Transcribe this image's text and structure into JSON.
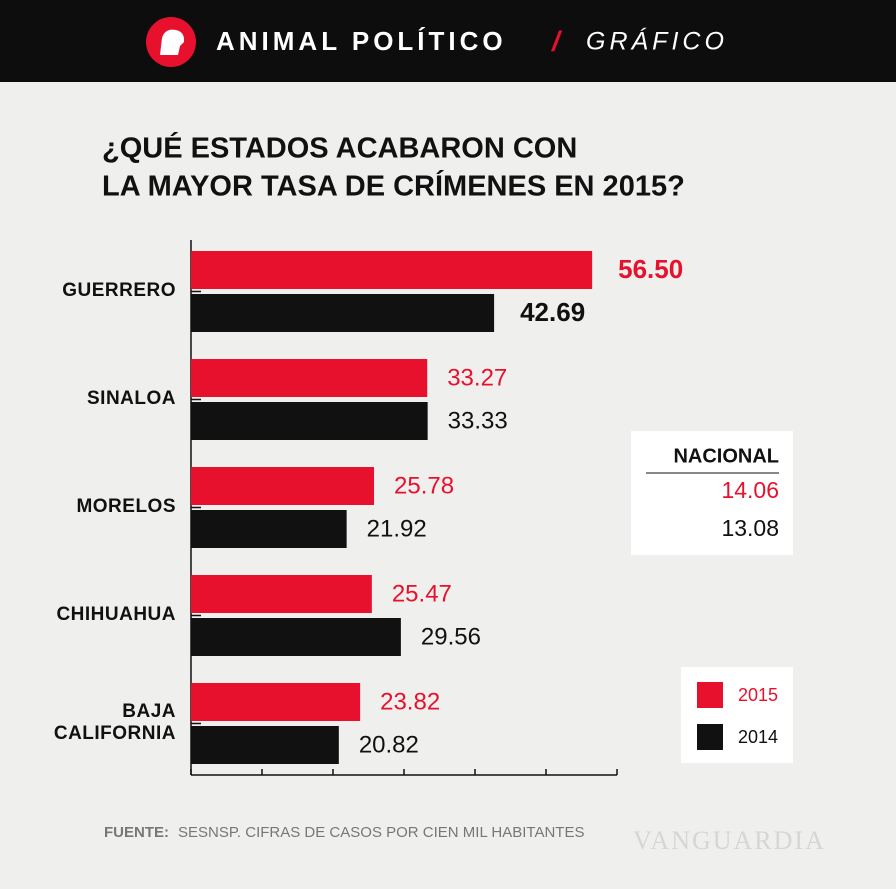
{
  "header": {
    "brand": "ANIMAL POLÍTICO",
    "separator": "/",
    "section": "GRÁFICO"
  },
  "chart_data": {
    "type": "bar",
    "orientation": "horizontal",
    "title": [
      "¿QUÉ ESTADOS ACABARON CON",
      "LA MAYOR TASA DE CRÍMENES EN 2015?"
    ],
    "categories": [
      "GUERRERO",
      "SINALOA",
      "MORELOS",
      "CHIHUAHUA",
      "BAJA CALIFORNIA"
    ],
    "series": [
      {
        "name": "2015",
        "color": "#e8112d",
        "values": [
          56.5,
          33.27,
          25.78,
          25.47,
          23.82
        ],
        "value_labels": [
          "56.50",
          "33.27",
          "25.78",
          "25.47",
          "23.82"
        ]
      },
      {
        "name": "2014",
        "color": "#111111",
        "values": [
          42.69,
          33.33,
          21.92,
          29.56,
          20.82
        ],
        "value_labels": [
          "42.69",
          "33.33",
          "21.92",
          "29.56",
          "20.82"
        ]
      }
    ],
    "xlim": [
      0,
      60
    ],
    "xticks": [
      0,
      10,
      20,
      30,
      40,
      50,
      60
    ],
    "national": {
      "title": "NACIONAL",
      "values": [
        14.06,
        13.08
      ]
    },
    "source_label": "FUENTE:",
    "source": "SESNSP. CIFRAS DE CASOS POR CIEN MIL HABITANTES"
  },
  "watermark": "VANGUARDIA"
}
